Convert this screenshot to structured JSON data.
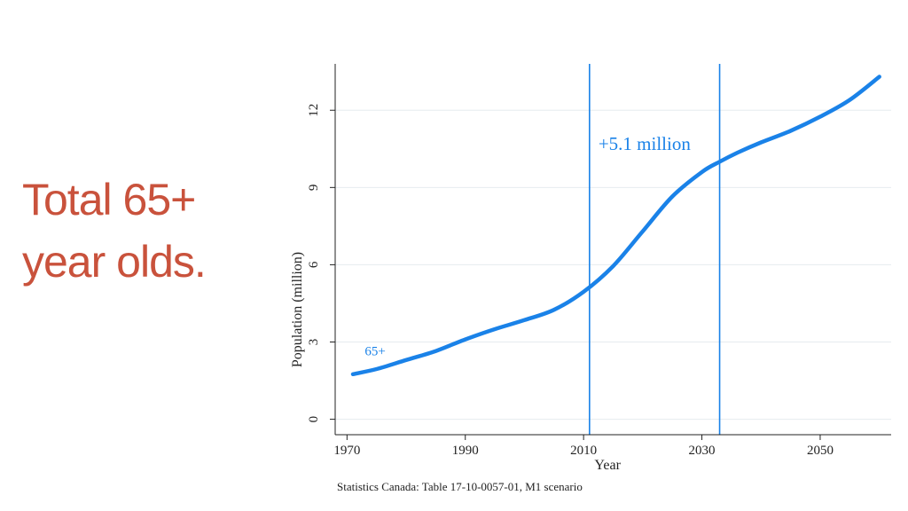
{
  "slide": {
    "title_line1": "Total 65+",
    "title_line2": "year olds.",
    "title_color": "#c9523c"
  },
  "chart_data": {
    "type": "line",
    "title": "",
    "xlabel": "Year",
    "ylabel": "Population (million)",
    "xlim": [
      1968,
      2062
    ],
    "ylim": [
      -0.6,
      13.8
    ],
    "xticks": [
      1970,
      1990,
      2010,
      2030,
      2050
    ],
    "yticks": [
      0,
      3,
      6,
      9,
      12
    ],
    "grid": "horizontal",
    "series": [
      {
        "name": "65+",
        "color": "#1a82e8",
        "x": [
          1971,
          1975,
          1980,
          1985,
          1990,
          1995,
          2000,
          2005,
          2010,
          2015,
          2020,
          2025,
          2030,
          2033,
          2036,
          2040,
          2045,
          2050,
          2055,
          2060
        ],
        "y": [
          1.75,
          1.95,
          2.3,
          2.65,
          3.1,
          3.5,
          3.85,
          4.25,
          4.95,
          5.95,
          7.3,
          8.65,
          9.6,
          10.0,
          10.35,
          10.75,
          11.2,
          11.75,
          12.4,
          13.3
        ]
      }
    ],
    "series_label": "65+",
    "vlines": [
      2011,
      2033
    ],
    "vline_color": "#1a82e8",
    "annotation": "+5.1 million",
    "source": "Statistics Canada: Table 17-10-0057-01, M1 scenario"
  }
}
